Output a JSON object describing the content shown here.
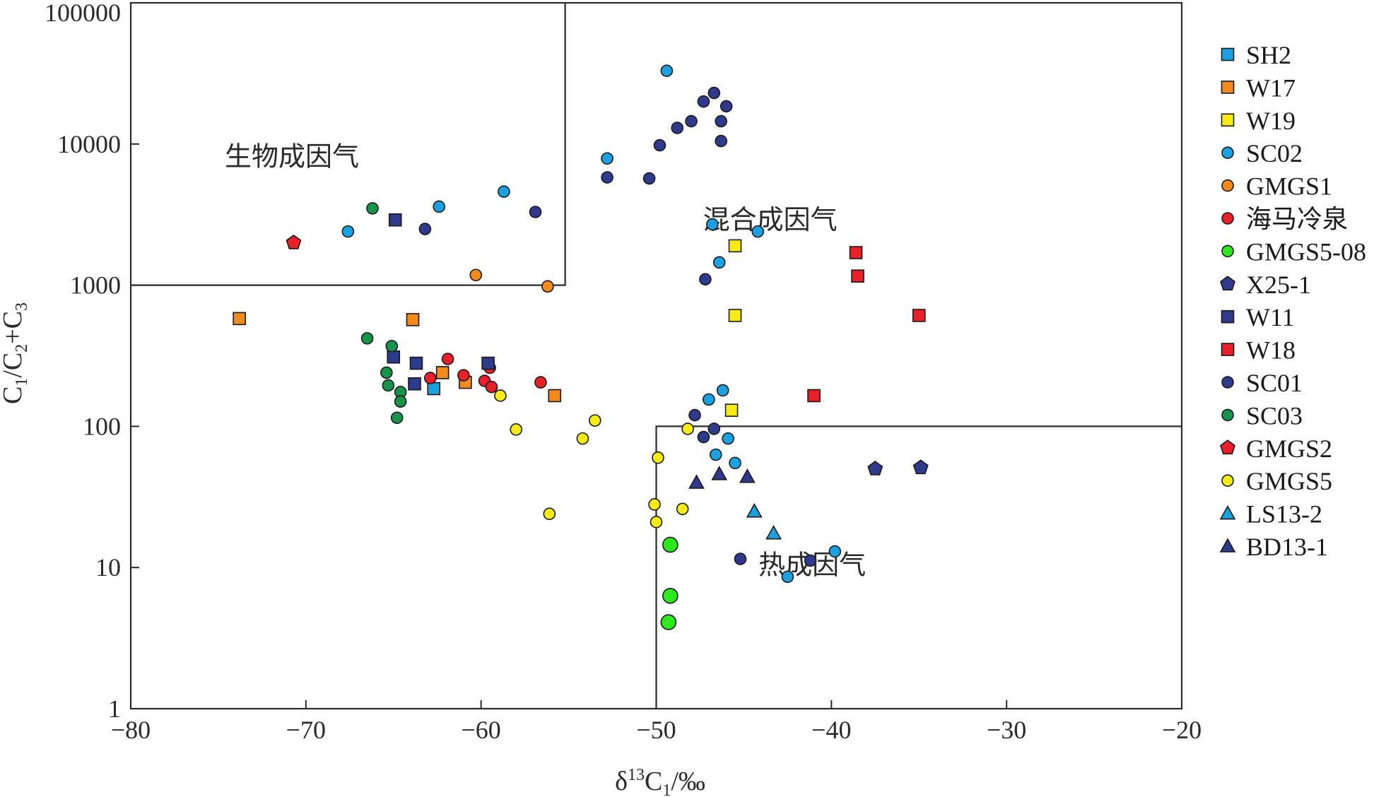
{
  "chart_data": {
    "type": "scatter",
    "x_axis": {
      "label_parts": {
        "delta": "δ",
        "sup": "13",
        "base": "C",
        "sub": "1",
        "unit": "/‰"
      },
      "range": [
        -80,
        -20
      ],
      "ticks": [
        -80,
        -70,
        -60,
        -50,
        -40,
        -30,
        -20
      ],
      "tick_labels": [
        "−80",
        "−70",
        "−60",
        "−50",
        "−40",
        "−30",
        "−20"
      ]
    },
    "y_axis": {
      "label_parts": [
        "C",
        "1",
        "/C",
        "2",
        "+C",
        "3"
      ],
      "scale": "log",
      "range": [
        1,
        100000
      ],
      "ticks": [
        1,
        10,
        100,
        1000,
        10000,
        100000
      ],
      "tick_labels": [
        "1",
        "10",
        "100",
        "1000",
        "10000",
        "100000"
      ]
    },
    "grid": false,
    "legend_position": "right",
    "region_boundaries": [
      {
        "name": "biogenic",
        "points": [
          [
            -80,
            1000
          ],
          [
            -55.2,
            1000
          ],
          [
            -55.2,
            100000
          ]
        ]
      },
      {
        "name": "thermogenic",
        "points": [
          [
            -50,
            1
          ],
          [
            -50,
            100
          ],
          [
            -20,
            100
          ]
        ]
      }
    ],
    "region_labels": [
      {
        "id": "biogenic",
        "text": "生物成因气",
        "x": -70.8,
        "y": 7000
      },
      {
        "id": "mixed",
        "text": "混合成因气",
        "x": -43.5,
        "y": 2500
      },
      {
        "id": "thermogenic",
        "text": "热成因气",
        "x": -41.1,
        "y": 9
      }
    ],
    "series": [
      {
        "name": "SH2",
        "marker": "square",
        "color": "#1ba0e0",
        "points": [
          [
            -62.7,
            185
          ]
        ]
      },
      {
        "name": "W17",
        "marker": "square",
        "color": "#f28a1e",
        "points": [
          [
            -73.8,
            580
          ],
          [
            -63.9,
            570
          ],
          [
            -62.2,
            240
          ],
          [
            -60.9,
            205
          ],
          [
            -55.8,
            165
          ]
        ]
      },
      {
        "name": "W19",
        "marker": "square",
        "color": "#f6eb14",
        "points": [
          [
            -45.5,
            1900
          ],
          [
            -45.5,
            610
          ],
          [
            -45.7,
            130
          ]
        ]
      },
      {
        "name": "SC02",
        "marker": "circle",
        "color": "#1ba0e0",
        "points": [
          [
            -49.4,
            33000
          ],
          [
            -52.8,
            7900
          ],
          [
            -58.7,
            4600
          ],
          [
            -62.4,
            3600
          ],
          [
            -67.6,
            2400
          ],
          [
            -46.8,
            2700
          ],
          [
            -44.2,
            2400
          ],
          [
            -46.4,
            1450
          ],
          [
            -46.2,
            180
          ],
          [
            -47.0,
            155
          ],
          [
            -45.9,
            82
          ],
          [
            -46.6,
            63
          ],
          [
            -45.5,
            55
          ],
          [
            -39.8,
            13
          ],
          [
            -42.5,
            8.6
          ]
        ]
      },
      {
        "name": "GMGS1",
        "marker": "circle",
        "color": "#f28a1e",
        "points": [
          [
            -60.3,
            1180
          ],
          [
            -56.2,
            980
          ]
        ]
      },
      {
        "name": "海马冷泉",
        "marker": "circle",
        "color": "#e8202a",
        "points": [
          [
            -61.9,
            300
          ],
          [
            -59.5,
            260
          ],
          [
            -61.0,
            230
          ],
          [
            -62.9,
            220
          ],
          [
            -59.8,
            210
          ],
          [
            -59.4,
            190
          ],
          [
            -56.6,
            205
          ]
        ]
      },
      {
        "name": "GMGS5-08",
        "marker": "circle_large",
        "color": "#2ee81e",
        "points": [
          [
            -49.2,
            14.5
          ],
          [
            -49.2,
            6.3
          ],
          [
            -49.3,
            4.1
          ]
        ]
      },
      {
        "name": "X25-1",
        "marker": "pentagon",
        "color": "#2e3a8c",
        "points": [
          [
            -37.5,
            50
          ],
          [
            -34.9,
            51
          ]
        ]
      },
      {
        "name": "W11",
        "marker": "square",
        "color": "#2e3a8c",
        "points": [
          [
            -64.9,
            2900
          ],
          [
            -65.0,
            310
          ],
          [
            -63.7,
            280
          ],
          [
            -59.6,
            280
          ],
          [
            -63.8,
            200
          ]
        ]
      },
      {
        "name": "W18",
        "marker": "square",
        "color": "#e8202a",
        "points": [
          [
            -38.6,
            1700
          ],
          [
            -38.5,
            1160
          ],
          [
            -35.0,
            610
          ],
          [
            -41.0,
            165
          ]
        ]
      },
      {
        "name": "SC01",
        "marker": "circle",
        "color": "#2e3a8c",
        "points": [
          [
            -46.7,
            23000
          ],
          [
            -47.3,
            20000
          ],
          [
            -46.0,
            18500
          ],
          [
            -46.3,
            14500
          ],
          [
            -48.0,
            14500
          ],
          [
            -48.8,
            13000
          ],
          [
            -46.3,
            10500
          ],
          [
            -49.8,
            9800
          ],
          [
            -52.8,
            5800
          ],
          [
            -50.4,
            5700
          ],
          [
            -56.9,
            3300
          ],
          [
            -63.2,
            2500
          ],
          [
            -47.2,
            1100
          ],
          [
            -47.8,
            120
          ],
          [
            -46.7,
            96
          ],
          [
            -47.3,
            84
          ],
          [
            -45.2,
            11.5
          ],
          [
            -41.2,
            11.2
          ]
        ]
      },
      {
        "name": "SC03",
        "marker": "circle",
        "color": "#17934a",
        "points": [
          [
            -66.2,
            3500
          ],
          [
            -66.5,
            420
          ],
          [
            -65.1,
            370
          ],
          [
            -65.4,
            240
          ],
          [
            -65.3,
            195
          ],
          [
            -64.6,
            175
          ],
          [
            -64.6,
            150
          ],
          [
            -64.8,
            115
          ]
        ]
      },
      {
        "name": "GMGS2",
        "marker": "pentagon",
        "color": "#e8202a",
        "points": [
          [
            -70.7,
            2000
          ]
        ]
      },
      {
        "name": "GMGS5",
        "marker": "circle",
        "color": "#f6eb14",
        "points": [
          [
            -58.9,
            165
          ],
          [
            -53.5,
            110
          ],
          [
            -54.2,
            82
          ],
          [
            -58.0,
            95
          ],
          [
            -56.1,
            24
          ],
          [
            -48.2,
            96
          ],
          [
            -49.9,
            60
          ],
          [
            -50.1,
            28
          ],
          [
            -48.5,
            26
          ],
          [
            -50.0,
            21
          ]
        ]
      },
      {
        "name": "LS13-2",
        "marker": "triangle",
        "color": "#1ba0e0",
        "points": [
          [
            -44.4,
            25
          ],
          [
            -43.3,
            17.5
          ]
        ]
      },
      {
        "name": "BD13-1",
        "marker": "triangle",
        "color": "#2e3a8c",
        "points": [
          [
            -47.7,
            40
          ],
          [
            -46.4,
            46
          ],
          [
            -44.8,
            44
          ]
        ]
      }
    ]
  }
}
